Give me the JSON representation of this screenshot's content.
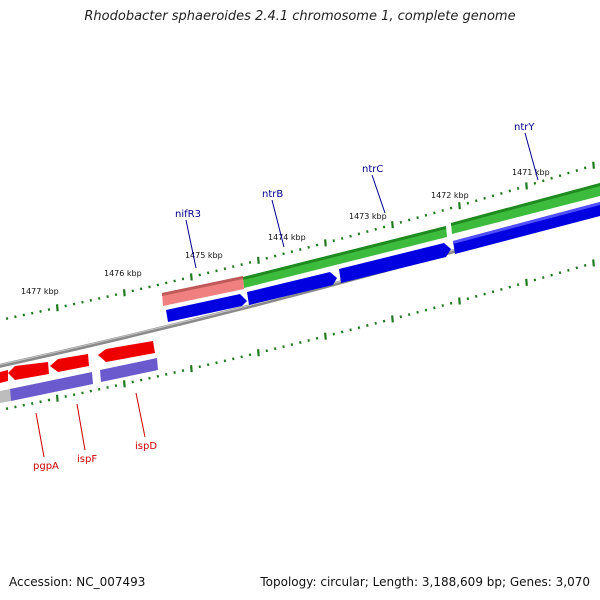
{
  "title": "Rhodobacter sphaeroides 2.4.1 chromosome 1, complete genome",
  "footer": {
    "accession": "Accession: NC_007493",
    "summary": "Topology: circular; Length: 3,188,609 bp; Genes: 3,070"
  },
  "colors": {
    "backbone": "#7a7a7a",
    "tick": "#1f7a1f",
    "forward_gene": "#0000e0",
    "reverse_gene": "#ee0000",
    "forward_gene_alt": "#6a5acd",
    "operon_green": "#3dbb3d",
    "operon_pink": "#f08080",
    "forward_label": "#00008b",
    "reverse_label": "#cc0000"
  },
  "scale_labels": [
    "1471 kbp",
    "1472 kbp",
    "1473 kbp",
    "1474 kbp",
    "1475 kbp",
    "1476 kbp",
    "1477 kbp"
  ],
  "genes_forward": [
    {
      "name": "ntrY",
      "icon": "gene-label-ntrY"
    },
    {
      "name": "ntrC",
      "icon": "gene-label-ntrC"
    },
    {
      "name": "ntrB",
      "icon": "gene-label-ntrB"
    },
    {
      "name": "nifR3",
      "icon": "gene-label-nifR3"
    }
  ],
  "genes_reverse": [
    {
      "name": "pgpA"
    },
    {
      "name": "ispF"
    },
    {
      "name": "ispD"
    }
  ]
}
